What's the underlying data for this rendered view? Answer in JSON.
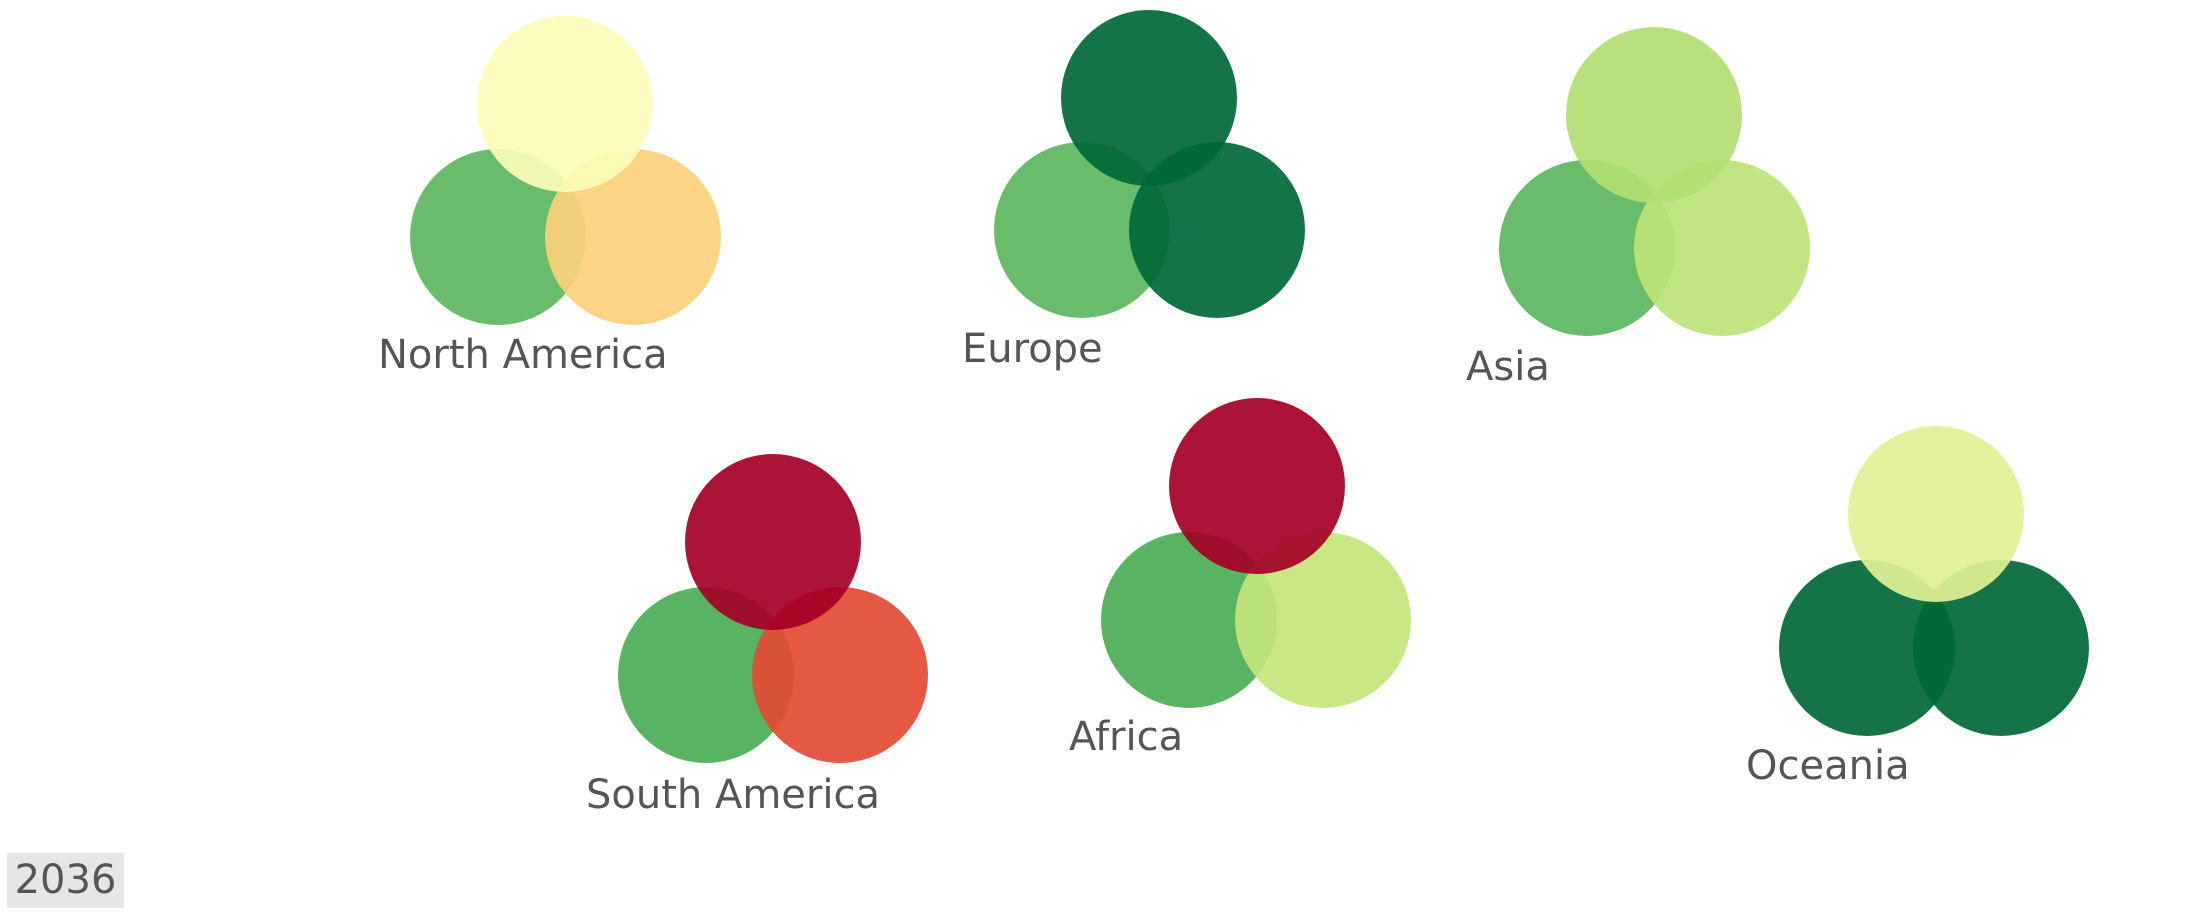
{
  "chart_data": {
    "type": "bubble-venn",
    "year": "2036",
    "circle_order": [
      "top",
      "bottom-left",
      "bottom-right"
    ],
    "regions": [
      {
        "name": "North America",
        "colors": [
          "#fcfcb8",
          "#5bb65e",
          "#fdd07c"
        ]
      },
      {
        "name": "Europe",
        "colors": [
          "#006837",
          "#5bb65e",
          "#006837"
        ]
      },
      {
        "name": "Asia",
        "colors": [
          "#b2de72",
          "#5bb65e",
          "#bde37a"
        ]
      },
      {
        "name": "South America",
        "colors": [
          "#a50026",
          "#4aad56",
          "#e34a33"
        ]
      },
      {
        "name": "Africa",
        "colors": [
          "#a50026",
          "#4aad56",
          "#c3e67c"
        ]
      },
      {
        "name": "Oceania",
        "colors": [
          "#dff194",
          "#006837",
          "#006837"
        ]
      }
    ]
  }
}
